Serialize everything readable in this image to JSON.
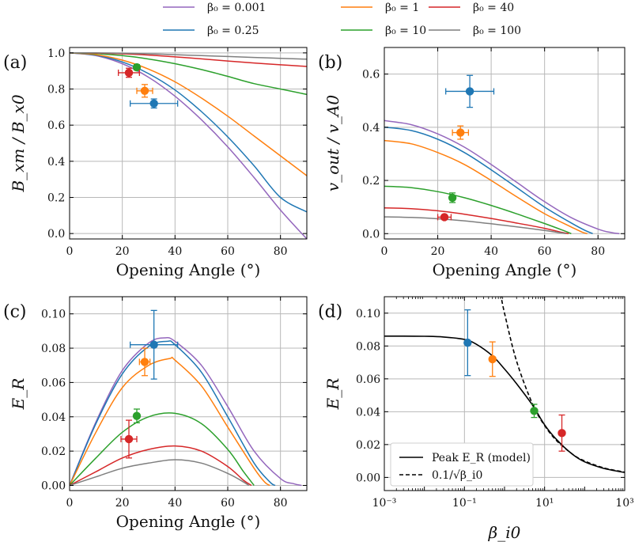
{
  "legend": {
    "entries": [
      {
        "label": "β₀ = 0.001",
        "color": "#9467bd"
      },
      {
        "label": "β₀ = 0.25",
        "color": "#1f77b4"
      },
      {
        "label": "β₀ = 1",
        "color": "#ff7f0e"
      },
      {
        "label": "β₀ = 10",
        "color": "#2ca02c"
      },
      {
        "label": "β₀ = 40",
        "color": "#d62728"
      },
      {
        "label": "β₀ = 100",
        "color": "#7f7f7f"
      }
    ]
  },
  "chart_data": [
    {
      "panel_label": "(a)",
      "type": "line",
      "xlabel": "Opening Angle (°)",
      "ylabel": "B_xm / B_x0",
      "xlim": [
        0,
        90
      ],
      "ylim": [
        -0.03,
        1.03
      ],
      "xticks": [
        0,
        20,
        40,
        60,
        80
      ],
      "yticks": [
        0.0,
        0.2,
        0.4,
        0.6,
        0.8,
        1.0
      ],
      "ytick_labels": [
        "0.0",
        "0.2",
        "0.4",
        "0.6",
        "0.8",
        "1.0"
      ],
      "grid": true,
      "series": [
        {
          "name": "β₀ = 0.001",
          "color": "#9467bd",
          "x": [
            0,
            10,
            20,
            30,
            40,
            50,
            60,
            70,
            80,
            90
          ],
          "y": [
            1.0,
            0.985,
            0.94,
            0.865,
            0.76,
            0.63,
            0.48,
            0.31,
            0.13,
            -0.03
          ]
        },
        {
          "name": "β₀ = 0.25",
          "color": "#1f77b4",
          "x": [
            0,
            10,
            20,
            30,
            40,
            50,
            60,
            70,
            80,
            90
          ],
          "y": [
            1.0,
            0.987,
            0.95,
            0.885,
            0.795,
            0.675,
            0.535,
            0.375,
            0.2,
            0.12
          ]
        },
        {
          "name": "β₀ = 1",
          "color": "#ff7f0e",
          "x": [
            0,
            10,
            20,
            30,
            40,
            50,
            60,
            70,
            80,
            90
          ],
          "y": [
            1.0,
            0.99,
            0.96,
            0.91,
            0.84,
            0.75,
            0.65,
            0.54,
            0.43,
            0.32
          ]
        },
        {
          "name": "β₀ = 10",
          "color": "#2ca02c",
          "x": [
            0,
            10,
            20,
            30,
            40,
            50,
            60,
            70,
            80,
            90
          ],
          "y": [
            1.0,
            0.996,
            0.985,
            0.966,
            0.94,
            0.908,
            0.87,
            0.83,
            0.8,
            0.77
          ]
        },
        {
          "name": "β₀ = 40",
          "color": "#d62728",
          "x": [
            0,
            10,
            20,
            30,
            40,
            50,
            60,
            70,
            80,
            90
          ],
          "y": [
            1.0,
            0.999,
            0.995,
            0.988,
            0.978,
            0.967,
            0.955,
            0.944,
            0.934,
            0.925
          ]
        },
        {
          "name": "β₀ = 100",
          "color": "#7f7f7f",
          "x": [
            0,
            10,
            20,
            30,
            40,
            50,
            60,
            70,
            80,
            90
          ],
          "y": [
            1.0,
            1.0,
            0.998,
            0.995,
            0.99,
            0.985,
            0.98,
            0.975,
            0.97,
            0.965
          ]
        }
      ],
      "points": [
        {
          "x": 32,
          "y": 0.72,
          "xerr": 9,
          "yerr": 0.025,
          "color": "#1f77b4"
        },
        {
          "x": 28.5,
          "y": 0.79,
          "xerr": 3,
          "yerr": 0.035,
          "color": "#ff7f0e"
        },
        {
          "x": 25.5,
          "y": 0.92,
          "xerr": 0,
          "yerr": 0.015,
          "color": "#2ca02c"
        },
        {
          "x": 22.5,
          "y": 0.89,
          "xerr": 4,
          "yerr": 0.025,
          "color": "#d62728"
        }
      ]
    },
    {
      "panel_label": "(b)",
      "type": "line",
      "xlabel": "Opening Angle (°)",
      "ylabel": "v_out / v_A0",
      "xlim": [
        0,
        90
      ],
      "ylim": [
        -0.02,
        0.7
      ],
      "xticks": [
        0,
        20,
        40,
        60,
        80
      ],
      "yticks": [
        0.0,
        0.2,
        0.4,
        0.6
      ],
      "ytick_labels": [
        "0.0",
        "0.2",
        "0.4",
        "0.6"
      ],
      "grid": true,
      "series": [
        {
          "name": "β₀ = 0.001",
          "color": "#9467bd",
          "x": [
            0,
            10,
            20,
            30,
            40,
            50,
            60,
            70,
            80,
            85,
            88
          ],
          "y": [
            0.425,
            0.41,
            0.375,
            0.325,
            0.26,
            0.19,
            0.12,
            0.06,
            0.017,
            0.004,
            0.0
          ]
        },
        {
          "name": "β₀ = 0.25",
          "color": "#1f77b4",
          "x": [
            0,
            10,
            20,
            30,
            40,
            50,
            60,
            70,
            75,
            78
          ],
          "y": [
            0.4,
            0.388,
            0.355,
            0.305,
            0.24,
            0.17,
            0.1,
            0.04,
            0.013,
            0.0
          ]
        },
        {
          "name": "β₀ = 1",
          "color": "#ff7f0e",
          "x": [
            0,
            10,
            20,
            30,
            40,
            50,
            60,
            70,
            74,
            76
          ],
          "y": [
            0.35,
            0.338,
            0.305,
            0.26,
            0.2,
            0.136,
            0.075,
            0.025,
            0.006,
            0.0
          ]
        },
        {
          "name": "β₀ = 10",
          "color": "#2ca02c",
          "x": [
            0,
            10,
            20,
            30,
            40,
            50,
            60,
            67,
            70
          ],
          "y": [
            0.178,
            0.173,
            0.158,
            0.135,
            0.106,
            0.073,
            0.038,
            0.012,
            0.0
          ]
        },
        {
          "name": "β₀ = 40",
          "color": "#d62728",
          "x": [
            0,
            10,
            20,
            30,
            40,
            50,
            60,
            66,
            69
          ],
          "y": [
            0.097,
            0.094,
            0.086,
            0.073,
            0.057,
            0.039,
            0.02,
            0.006,
            0.0
          ]
        },
        {
          "name": "β₀ = 100",
          "color": "#7f7f7f",
          "x": [
            0,
            10,
            20,
            30,
            40,
            50,
            60,
            66,
            68
          ],
          "y": [
            0.063,
            0.061,
            0.056,
            0.048,
            0.037,
            0.025,
            0.012,
            0.003,
            0.0
          ]
        }
      ],
      "points": [
        {
          "x": 32,
          "y": 0.535,
          "xerr": 9,
          "yerr": 0.06,
          "color": "#1f77b4"
        },
        {
          "x": 28.5,
          "y": 0.38,
          "xerr": 3,
          "yerr": 0.025,
          "color": "#ff7f0e"
        },
        {
          "x": 25.5,
          "y": 0.135,
          "xerr": 0,
          "yerr": 0.018,
          "color": "#2ca02c"
        },
        {
          "x": 22.5,
          "y": 0.062,
          "xerr": 2.5,
          "yerr": 0.008,
          "color": "#d62728"
        }
      ]
    },
    {
      "panel_label": "(c)",
      "type": "line",
      "xlabel": "Opening Angle (°)",
      "ylabel": "E_R",
      "xlim": [
        0,
        90
      ],
      "ylim": [
        -0.003,
        0.11
      ],
      "xticks": [
        0,
        20,
        40,
        60,
        80
      ],
      "yticks": [
        0.0,
        0.02,
        0.04,
        0.06,
        0.08,
        0.1
      ],
      "ytick_labels": [
        "0.00",
        "0.02",
        "0.04",
        "0.06",
        "0.08",
        "0.10"
      ],
      "grid": true,
      "series": [
        {
          "name": "β₀ = 0.001",
          "color": "#9467bd",
          "x": [
            0,
            10,
            20,
            30,
            36,
            40,
            50,
            60,
            70,
            80,
            85,
            88
          ],
          "y": [
            0.0,
            0.037,
            0.067,
            0.083,
            0.086,
            0.084,
            0.07,
            0.046,
            0.02,
            0.004,
            0.001,
            0.0
          ]
        },
        {
          "name": "β₀ = 0.25",
          "color": "#1f77b4",
          "x": [
            0,
            10,
            20,
            30,
            37,
            40,
            50,
            60,
            70,
            76,
            78
          ],
          "y": [
            0.0,
            0.036,
            0.065,
            0.081,
            0.084,
            0.082,
            0.066,
            0.04,
            0.013,
            0.002,
            0.0
          ]
        },
        {
          "name": "β₀ = 1",
          "color": "#ff7f0e",
          "x": [
            0,
            10,
            20,
            30,
            38,
            40,
            50,
            60,
            70,
            74,
            76
          ],
          "y": [
            0.0,
            0.031,
            0.057,
            0.07,
            0.074,
            0.073,
            0.058,
            0.034,
            0.01,
            0.002,
            0.0
          ]
        },
        {
          "name": "β₀ = 10",
          "color": "#2ca02c",
          "x": [
            0,
            10,
            20,
            30,
            40,
            50,
            60,
            66,
            70
          ],
          "y": [
            0.0,
            0.016,
            0.031,
            0.04,
            0.042,
            0.036,
            0.021,
            0.008,
            0.0
          ]
        },
        {
          "name": "β₀ = 40",
          "color": "#d62728",
          "x": [
            0,
            10,
            20,
            30,
            40,
            50,
            60,
            66,
            69
          ],
          "y": [
            0.0,
            0.008,
            0.016,
            0.021,
            0.023,
            0.02,
            0.011,
            0.003,
            0.0
          ]
        },
        {
          "name": "β₀ = 100",
          "color": "#7f7f7f",
          "x": [
            0,
            10,
            20,
            30,
            40,
            50,
            60,
            66,
            68
          ],
          "y": [
            0.0,
            0.005,
            0.01,
            0.013,
            0.015,
            0.013,
            0.007,
            0.002,
            0.0
          ]
        }
      ],
      "points": [
        {
          "x": 32,
          "y": 0.082,
          "xerr": 9,
          "yerr": 0.02,
          "color": "#1f77b4"
        },
        {
          "x": 28.5,
          "y": 0.072,
          "xerr": 2,
          "yerr": 0.008,
          "color": "#ff7f0e"
        },
        {
          "x": 25.5,
          "y": 0.0405,
          "xerr": 0,
          "yerr": 0.004,
          "color": "#2ca02c"
        },
        {
          "x": 22.5,
          "y": 0.027,
          "xerr": 3,
          "yerr": 0.011,
          "color": "#d62728"
        }
      ]
    },
    {
      "panel_label": "(d)",
      "type": "line",
      "xscale": "log",
      "xlabel": "β_i0",
      "ylabel": "E_R",
      "xlim": [
        0.001,
        1000
      ],
      "ylim": [
        -0.008,
        0.11
      ],
      "xticks": [
        0.001,
        0.1,
        10,
        1000
      ],
      "xtick_labels": [
        "10⁻³",
        "10⁻¹",
        "10¹",
        "10³"
      ],
      "yticks": [
        0.0,
        0.02,
        0.04,
        0.06,
        0.08,
        0.1
      ],
      "ytick_labels": [
        "0.00",
        "0.02",
        "0.04",
        "0.06",
        "0.08",
        "0.10"
      ],
      "grid": true,
      "legend_position": "lower-left",
      "series": [
        {
          "name": "Peak E_R (model)",
          "color": "#000000",
          "dash": "solid",
          "x": [
            0.001,
            0.003,
            0.01,
            0.03,
            0.1,
            0.2,
            0.5,
            1,
            2,
            5,
            10,
            20,
            50,
            100,
            300,
            1000
          ],
          "y": [
            0.086,
            0.086,
            0.0859,
            0.0855,
            0.084,
            0.081,
            0.074,
            0.066,
            0.057,
            0.044,
            0.032,
            0.023,
            0.014,
            0.0095,
            0.0055,
            0.003
          ]
        },
        {
          "name": "0.1/√β_i0",
          "color": "#000000",
          "dash": "dashed",
          "x": [
            0.8,
            1,
            2,
            5,
            10,
            20,
            50,
            100,
            300,
            1000
          ],
          "y": [
            0.1118,
            0.1,
            0.0707,
            0.0447,
            0.0316,
            0.0224,
            0.0141,
            0.01,
            0.0058,
            0.0032
          ]
        }
      ],
      "points": [
        {
          "x": 0.12,
          "y": 0.082,
          "yerr": 0.02,
          "color": "#1f77b4"
        },
        {
          "x": 0.5,
          "y": 0.072,
          "yerr": 0.0105,
          "color": "#ff7f0e"
        },
        {
          "x": 5.5,
          "y": 0.0405,
          "yerr": 0.004,
          "color": "#2ca02c"
        },
        {
          "x": 27,
          "y": 0.027,
          "yerr": 0.011,
          "color": "#d62728"
        }
      ]
    }
  ]
}
